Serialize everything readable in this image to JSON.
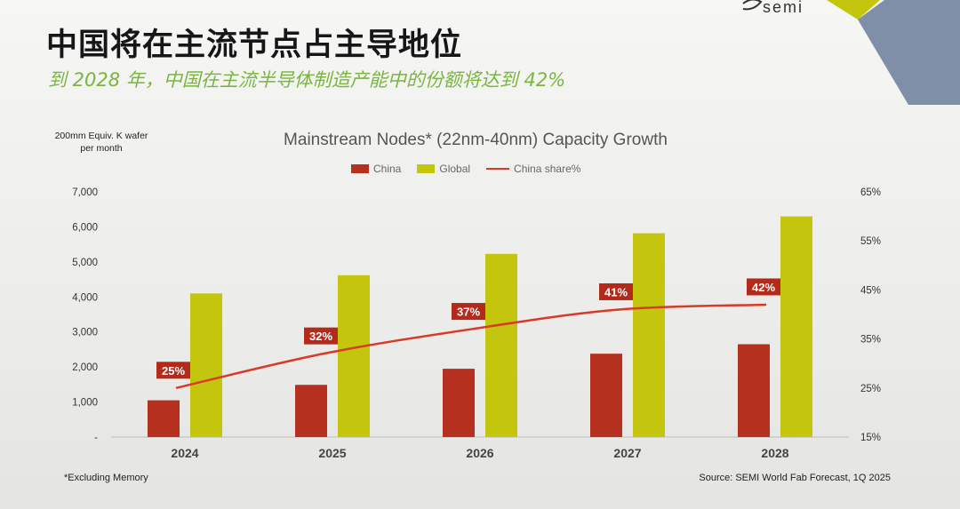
{
  "brand": {
    "logo_text": "semi"
  },
  "header": {
    "title": "中国将在主流节点占主导地位",
    "subtitle": "到 2028 年，中国在主流半导体制造产能中的份额将达到 42%"
  },
  "colors": {
    "china": "#b5301e",
    "global": "#c3c60d",
    "share_line": "#d93a26",
    "label_bg": "#b42a1a",
    "subtitle": "#7ab540"
  },
  "footer": {
    "note": "*Excluding Memory",
    "source": "Source: SEMI World Fab Forecast, 1Q 2025"
  },
  "chart_data": {
    "type": "bar",
    "title": "Mainstream Nodes* (22nm-40nm) Capacity Growth",
    "ylabel": "200mm Equiv. K wafer per month",
    "xlabel": "",
    "categories": [
      "2024",
      "2025",
      "2026",
      "2027",
      "2028"
    ],
    "ylim": [
      0,
      7000
    ],
    "yticks": [
      "-",
      "1,000",
      "2,000",
      "3,000",
      "4,000",
      "5,000",
      "6,000",
      "7,000"
    ],
    "y2lim": [
      15,
      65
    ],
    "y2ticks": [
      "15%",
      "25%",
      "35%",
      "45%",
      "55%",
      "65%"
    ],
    "legend_position": "top-center",
    "grid": false,
    "series": [
      {
        "name": "China",
        "type": "bar",
        "values": [
          1050,
          1490,
          1950,
          2380,
          2650
        ]
      },
      {
        "name": "Global",
        "type": "bar",
        "values": [
          4100,
          4620,
          5230,
          5820,
          6300
        ]
      },
      {
        "name": "China share%",
        "type": "line",
        "axis": "secondary",
        "values": [
          25,
          32,
          37,
          41,
          42
        ],
        "labels": [
          "25%",
          "32%",
          "37%",
          "41%",
          "42%"
        ]
      }
    ]
  }
}
